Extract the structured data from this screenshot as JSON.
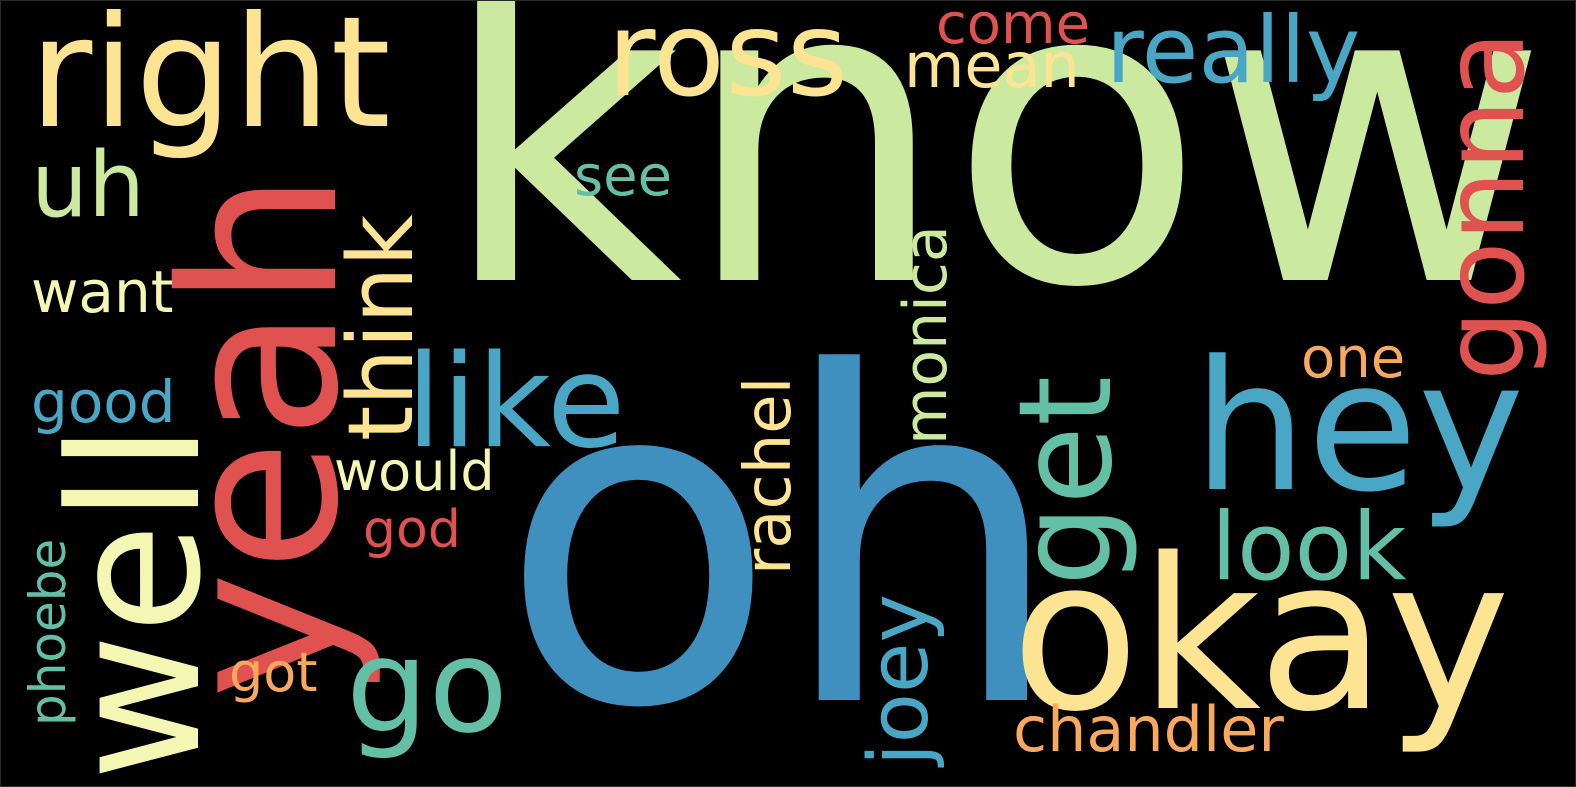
{
  "palette": {
    "background": "#000000",
    "green": "#cce9a0",
    "blue": "#3f8fbf",
    "teal": "#63bfa6",
    "red": "#e0524f",
    "yellow": "#fde492",
    "orange": "#f9a95e",
    "pale_yellow": "#f4f7b3",
    "sky": "#4aa6c5"
  },
  "words": [
    {
      "text": "know",
      "color": "green"
    },
    {
      "text": "oh",
      "color": "blue"
    },
    {
      "text": "yeah",
      "color": "red"
    },
    {
      "text": "well",
      "color": "pale_yellow"
    },
    {
      "text": "okay",
      "color": "yellow"
    },
    {
      "text": "hey",
      "color": "sky"
    },
    {
      "text": "right",
      "color": "yellow"
    },
    {
      "text": "ross",
      "color": "yellow"
    },
    {
      "text": "gonna",
      "color": "red"
    },
    {
      "text": "like",
      "color": "sky"
    },
    {
      "text": "get",
      "color": "teal"
    },
    {
      "text": "go",
      "color": "teal"
    },
    {
      "text": "really",
      "color": "sky"
    },
    {
      "text": "look",
      "color": "teal"
    },
    {
      "text": "chandler",
      "color": "orange"
    },
    {
      "text": "think",
      "color": "yellow"
    },
    {
      "text": "uh",
      "color": "green"
    },
    {
      "text": "joey",
      "color": "sky"
    },
    {
      "text": "monica",
      "color": "green"
    },
    {
      "text": "rachel",
      "color": "yellow"
    },
    {
      "text": "mean",
      "color": "yellow"
    },
    {
      "text": "come",
      "color": "red"
    },
    {
      "text": "want",
      "color": "pale_yellow"
    },
    {
      "text": "would",
      "color": "pale_yellow"
    },
    {
      "text": "good",
      "color": "sky"
    },
    {
      "text": "see",
      "color": "teal"
    },
    {
      "text": "one",
      "color": "orange"
    },
    {
      "text": "god",
      "color": "red"
    },
    {
      "text": "got",
      "color": "orange"
    },
    {
      "text": "phoebe",
      "color": "teal"
    }
  ]
}
